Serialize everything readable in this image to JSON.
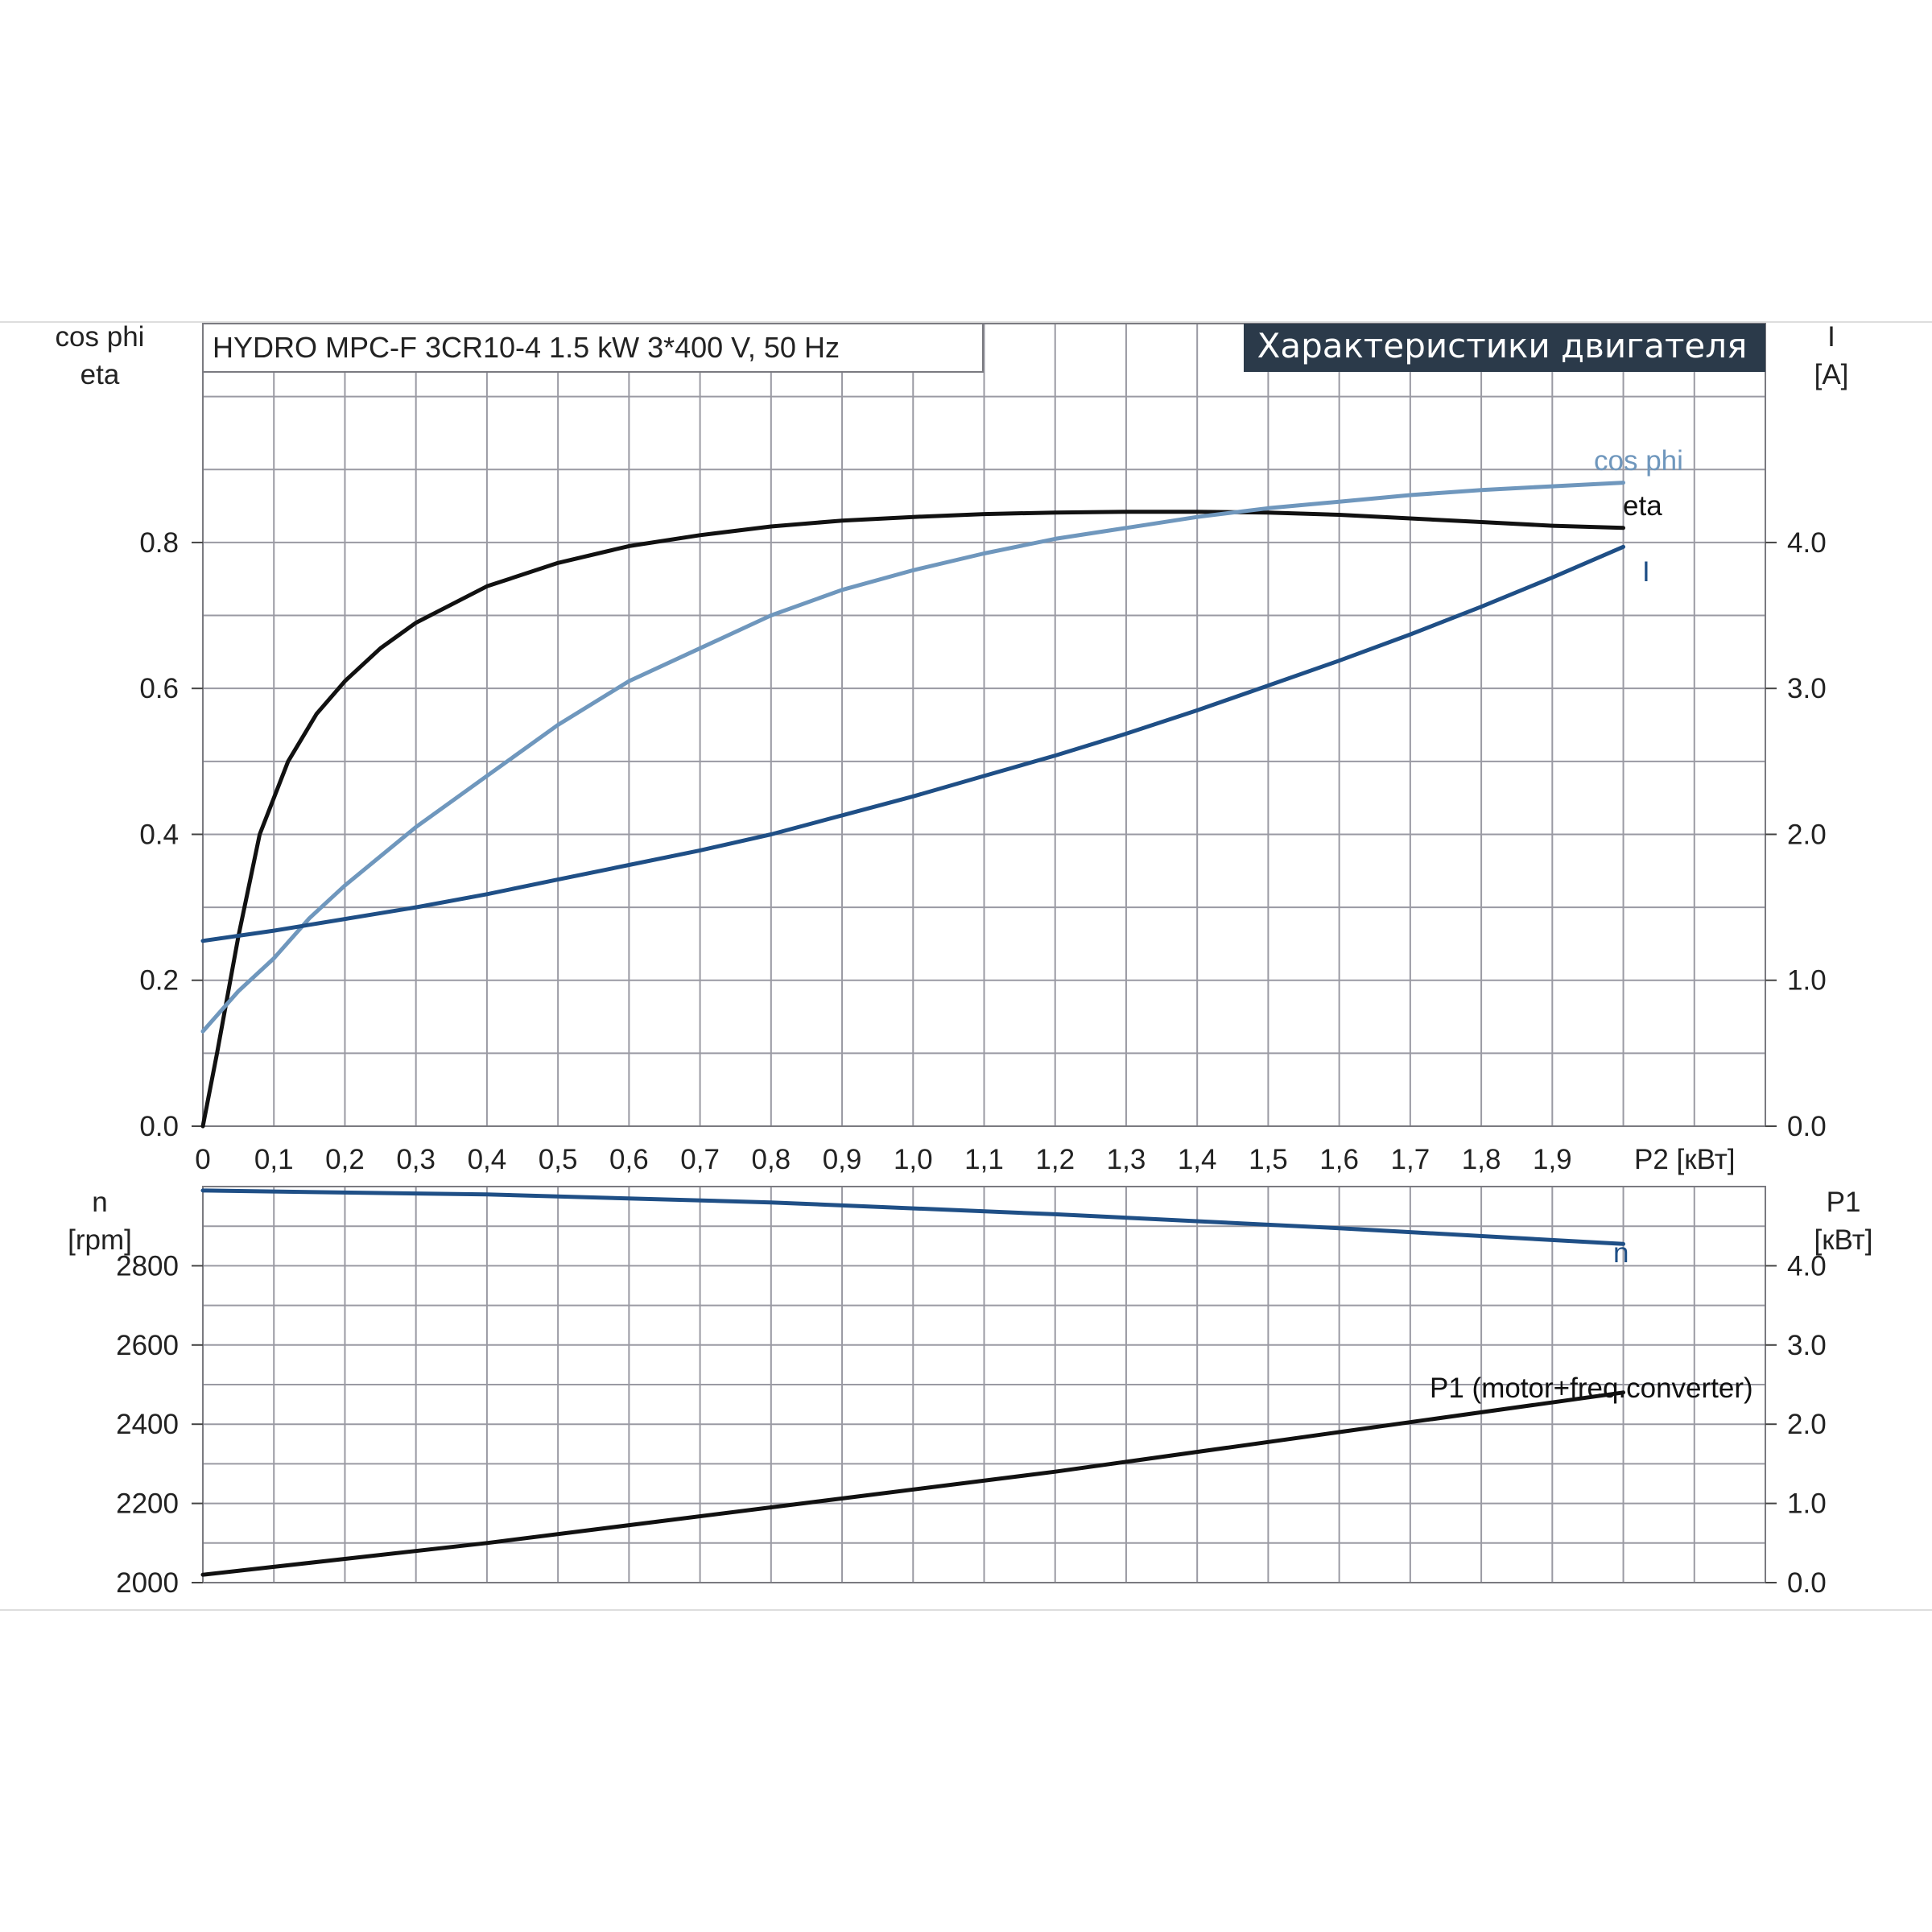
{
  "chart_data": [
    {
      "type": "line",
      "title": "Характеристики двигателя",
      "subtitle": "HYDRO MPC-F 3CR10-4   1.5 kW   3*400 V, 50 Hz",
      "xlabel": "P2 [кВт]",
      "x_ticks": [
        "0",
        "0,1",
        "0,2",
        "0,3",
        "0,4",
        "0,5",
        "0,6",
        "0,7",
        "0,8",
        "0,9",
        "1,0",
        "1,1",
        "1,2",
        "1,3",
        "1,4",
        "1,5",
        "1,6",
        "1,7",
        "1,8",
        "1,9"
      ],
      "xlim": [
        0,
        2.2
      ],
      "left_axis": {
        "label_line1": "cos phi",
        "label_line2": "eta",
        "ylim": [
          0,
          1.1
        ],
        "ticks": [
          "0.0",
          "0.2",
          "0.4",
          "0.6",
          "0.8"
        ],
        "tick_values": [
          0,
          0.2,
          0.4,
          0.6,
          0.8
        ]
      },
      "right_axis": {
        "label_line1": "I",
        "label_line2": "[A]",
        "ylim": [
          0,
          5.5
        ],
        "ticks": [
          "0.0",
          "1.0",
          "2.0",
          "3.0",
          "4.0"
        ],
        "tick_values": [
          0,
          1,
          2,
          3,
          4
        ]
      },
      "grid": true,
      "series": [
        {
          "name": "eta",
          "axis": "left",
          "color": "#111111",
          "x": [
            0,
            0.02,
            0.05,
            0.08,
            0.12,
            0.16,
            0.2,
            0.25,
            0.3,
            0.4,
            0.5,
            0.6,
            0.7,
            0.8,
            0.9,
            1.0,
            1.1,
            1.2,
            1.3,
            1.4,
            1.5,
            1.6,
            1.7,
            1.8,
            1.9,
            2.0
          ],
          "y": [
            0,
            0.1,
            0.26,
            0.4,
            0.5,
            0.565,
            0.61,
            0.655,
            0.69,
            0.74,
            0.772,
            0.795,
            0.81,
            0.822,
            0.83,
            0.835,
            0.839,
            0.841,
            0.842,
            0.842,
            0.841,
            0.838,
            0.833,
            0.828,
            0.823,
            0.82
          ]
        },
        {
          "name": "cos phi",
          "axis": "left",
          "color": "#6f97bd",
          "x": [
            0,
            0.05,
            0.1,
            0.15,
            0.2,
            0.3,
            0.4,
            0.5,
            0.6,
            0.7,
            0.8,
            0.9,
            1.0,
            1.1,
            1.2,
            1.3,
            1.4,
            1.5,
            1.6,
            1.7,
            1.8,
            1.9,
            2.0
          ],
          "y": [
            0.13,
            0.185,
            0.23,
            0.285,
            0.33,
            0.41,
            0.48,
            0.55,
            0.61,
            0.655,
            0.7,
            0.735,
            0.762,
            0.785,
            0.805,
            0.82,
            0.835,
            0.847,
            0.856,
            0.865,
            0.872,
            0.877,
            0.882
          ]
        },
        {
          "name": "I",
          "axis": "right",
          "color": "#1f4f86",
          "x": [
            0,
            0.1,
            0.2,
            0.3,
            0.4,
            0.5,
            0.6,
            0.7,
            0.8,
            0.9,
            1.0,
            1.1,
            1.2,
            1.3,
            1.4,
            1.5,
            1.6,
            1.7,
            1.8,
            1.9,
            2.0
          ],
          "y": [
            1.27,
            1.34,
            1.42,
            1.5,
            1.59,
            1.69,
            1.79,
            1.89,
            2.0,
            2.13,
            2.26,
            2.4,
            2.54,
            2.69,
            2.85,
            3.02,
            3.19,
            3.37,
            3.56,
            3.76,
            3.97
          ]
        }
      ]
    },
    {
      "type": "line",
      "xlim": [
        0,
        2.2
      ],
      "left_axis": {
        "label_line1": "n",
        "label_line2": "[rpm]",
        "ylim": [
          2000,
          3000
        ],
        "ticks": [
          "2000",
          "2200",
          "2400",
          "2600",
          "2800"
        ],
        "tick_values": [
          2000,
          2200,
          2400,
          2600,
          2800
        ]
      },
      "right_axis": {
        "label_line1": "P1",
        "label_line2": "[кВт]",
        "ylim": [
          0,
          5
        ],
        "ticks": [
          "0.0",
          "1.0",
          "2.0",
          "3.0",
          "4.0"
        ],
        "tick_values": [
          0,
          1,
          2,
          3,
          4
        ]
      },
      "grid": true,
      "series": [
        {
          "name": "n",
          "axis": "left",
          "color": "#1f4f86",
          "x": [
            0,
            0.4,
            0.8,
            1.2,
            1.6,
            2.0
          ],
          "y": [
            2990,
            2980,
            2960,
            2930,
            2895,
            2855
          ]
        },
        {
          "name": "P1 (motor+freq.converter)",
          "axis": "right",
          "color": "#111111",
          "x": [
            0,
            0.4,
            0.8,
            1.2,
            1.6,
            2.0
          ],
          "y": [
            0.1,
            0.5,
            0.95,
            1.4,
            1.9,
            2.4
          ]
        }
      ]
    }
  ]
}
